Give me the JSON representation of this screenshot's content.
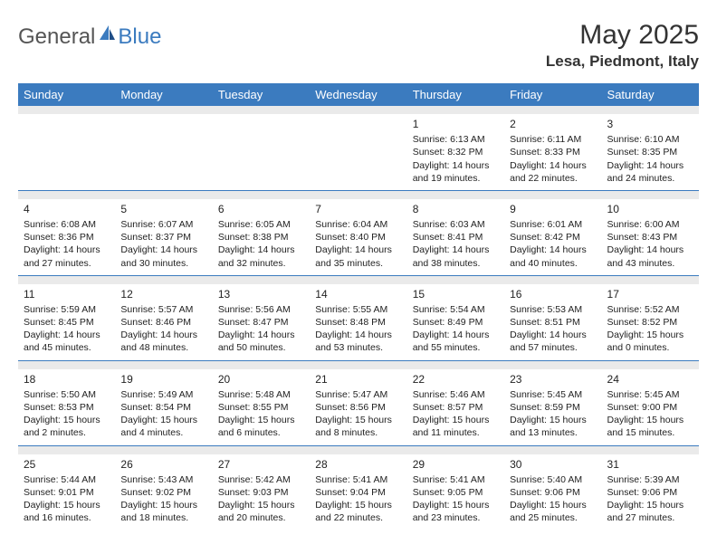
{
  "logo": {
    "general": "General",
    "blue": "Blue"
  },
  "title": "May 2025",
  "location": "Lesa, Piedmont, Italy",
  "colors": {
    "header_bg": "#3b7bbf",
    "header_text": "#ffffff",
    "sep_bg": "#eaeaea",
    "text": "#222222"
  },
  "dayHeaders": [
    "Sunday",
    "Monday",
    "Tuesday",
    "Wednesday",
    "Thursday",
    "Friday",
    "Saturday"
  ],
  "weeks": [
    [
      null,
      null,
      null,
      null,
      {
        "n": "1",
        "sr": "Sunrise: 6:13 AM",
        "ss": "Sunset: 8:32 PM",
        "dl1": "Daylight: 14 hours",
        "dl2": "and 19 minutes."
      },
      {
        "n": "2",
        "sr": "Sunrise: 6:11 AM",
        "ss": "Sunset: 8:33 PM",
        "dl1": "Daylight: 14 hours",
        "dl2": "and 22 minutes."
      },
      {
        "n": "3",
        "sr": "Sunrise: 6:10 AM",
        "ss": "Sunset: 8:35 PM",
        "dl1": "Daylight: 14 hours",
        "dl2": "and 24 minutes."
      }
    ],
    [
      {
        "n": "4",
        "sr": "Sunrise: 6:08 AM",
        "ss": "Sunset: 8:36 PM",
        "dl1": "Daylight: 14 hours",
        "dl2": "and 27 minutes."
      },
      {
        "n": "5",
        "sr": "Sunrise: 6:07 AM",
        "ss": "Sunset: 8:37 PM",
        "dl1": "Daylight: 14 hours",
        "dl2": "and 30 minutes."
      },
      {
        "n": "6",
        "sr": "Sunrise: 6:05 AM",
        "ss": "Sunset: 8:38 PM",
        "dl1": "Daylight: 14 hours",
        "dl2": "and 32 minutes."
      },
      {
        "n": "7",
        "sr": "Sunrise: 6:04 AM",
        "ss": "Sunset: 8:40 PM",
        "dl1": "Daylight: 14 hours",
        "dl2": "and 35 minutes."
      },
      {
        "n": "8",
        "sr": "Sunrise: 6:03 AM",
        "ss": "Sunset: 8:41 PM",
        "dl1": "Daylight: 14 hours",
        "dl2": "and 38 minutes."
      },
      {
        "n": "9",
        "sr": "Sunrise: 6:01 AM",
        "ss": "Sunset: 8:42 PM",
        "dl1": "Daylight: 14 hours",
        "dl2": "and 40 minutes."
      },
      {
        "n": "10",
        "sr": "Sunrise: 6:00 AM",
        "ss": "Sunset: 8:43 PM",
        "dl1": "Daylight: 14 hours",
        "dl2": "and 43 minutes."
      }
    ],
    [
      {
        "n": "11",
        "sr": "Sunrise: 5:59 AM",
        "ss": "Sunset: 8:45 PM",
        "dl1": "Daylight: 14 hours",
        "dl2": "and 45 minutes."
      },
      {
        "n": "12",
        "sr": "Sunrise: 5:57 AM",
        "ss": "Sunset: 8:46 PM",
        "dl1": "Daylight: 14 hours",
        "dl2": "and 48 minutes."
      },
      {
        "n": "13",
        "sr": "Sunrise: 5:56 AM",
        "ss": "Sunset: 8:47 PM",
        "dl1": "Daylight: 14 hours",
        "dl2": "and 50 minutes."
      },
      {
        "n": "14",
        "sr": "Sunrise: 5:55 AM",
        "ss": "Sunset: 8:48 PM",
        "dl1": "Daylight: 14 hours",
        "dl2": "and 53 minutes."
      },
      {
        "n": "15",
        "sr": "Sunrise: 5:54 AM",
        "ss": "Sunset: 8:49 PM",
        "dl1": "Daylight: 14 hours",
        "dl2": "and 55 minutes."
      },
      {
        "n": "16",
        "sr": "Sunrise: 5:53 AM",
        "ss": "Sunset: 8:51 PM",
        "dl1": "Daylight: 14 hours",
        "dl2": "and 57 minutes."
      },
      {
        "n": "17",
        "sr": "Sunrise: 5:52 AM",
        "ss": "Sunset: 8:52 PM",
        "dl1": "Daylight: 15 hours",
        "dl2": "and 0 minutes."
      }
    ],
    [
      {
        "n": "18",
        "sr": "Sunrise: 5:50 AM",
        "ss": "Sunset: 8:53 PM",
        "dl1": "Daylight: 15 hours",
        "dl2": "and 2 minutes."
      },
      {
        "n": "19",
        "sr": "Sunrise: 5:49 AM",
        "ss": "Sunset: 8:54 PM",
        "dl1": "Daylight: 15 hours",
        "dl2": "and 4 minutes."
      },
      {
        "n": "20",
        "sr": "Sunrise: 5:48 AM",
        "ss": "Sunset: 8:55 PM",
        "dl1": "Daylight: 15 hours",
        "dl2": "and 6 minutes."
      },
      {
        "n": "21",
        "sr": "Sunrise: 5:47 AM",
        "ss": "Sunset: 8:56 PM",
        "dl1": "Daylight: 15 hours",
        "dl2": "and 8 minutes."
      },
      {
        "n": "22",
        "sr": "Sunrise: 5:46 AM",
        "ss": "Sunset: 8:57 PM",
        "dl1": "Daylight: 15 hours",
        "dl2": "and 11 minutes."
      },
      {
        "n": "23",
        "sr": "Sunrise: 5:45 AM",
        "ss": "Sunset: 8:59 PM",
        "dl1": "Daylight: 15 hours",
        "dl2": "and 13 minutes."
      },
      {
        "n": "24",
        "sr": "Sunrise: 5:45 AM",
        "ss": "Sunset: 9:00 PM",
        "dl1": "Daylight: 15 hours",
        "dl2": "and 15 minutes."
      }
    ],
    [
      {
        "n": "25",
        "sr": "Sunrise: 5:44 AM",
        "ss": "Sunset: 9:01 PM",
        "dl1": "Daylight: 15 hours",
        "dl2": "and 16 minutes."
      },
      {
        "n": "26",
        "sr": "Sunrise: 5:43 AM",
        "ss": "Sunset: 9:02 PM",
        "dl1": "Daylight: 15 hours",
        "dl2": "and 18 minutes."
      },
      {
        "n": "27",
        "sr": "Sunrise: 5:42 AM",
        "ss": "Sunset: 9:03 PM",
        "dl1": "Daylight: 15 hours",
        "dl2": "and 20 minutes."
      },
      {
        "n": "28",
        "sr": "Sunrise: 5:41 AM",
        "ss": "Sunset: 9:04 PM",
        "dl1": "Daylight: 15 hours",
        "dl2": "and 22 minutes."
      },
      {
        "n": "29",
        "sr": "Sunrise: 5:41 AM",
        "ss": "Sunset: 9:05 PM",
        "dl1": "Daylight: 15 hours",
        "dl2": "and 23 minutes."
      },
      {
        "n": "30",
        "sr": "Sunrise: 5:40 AM",
        "ss": "Sunset: 9:06 PM",
        "dl1": "Daylight: 15 hours",
        "dl2": "and 25 minutes."
      },
      {
        "n": "31",
        "sr": "Sunrise: 5:39 AM",
        "ss": "Sunset: 9:06 PM",
        "dl1": "Daylight: 15 hours",
        "dl2": "and 27 minutes."
      }
    ]
  ]
}
